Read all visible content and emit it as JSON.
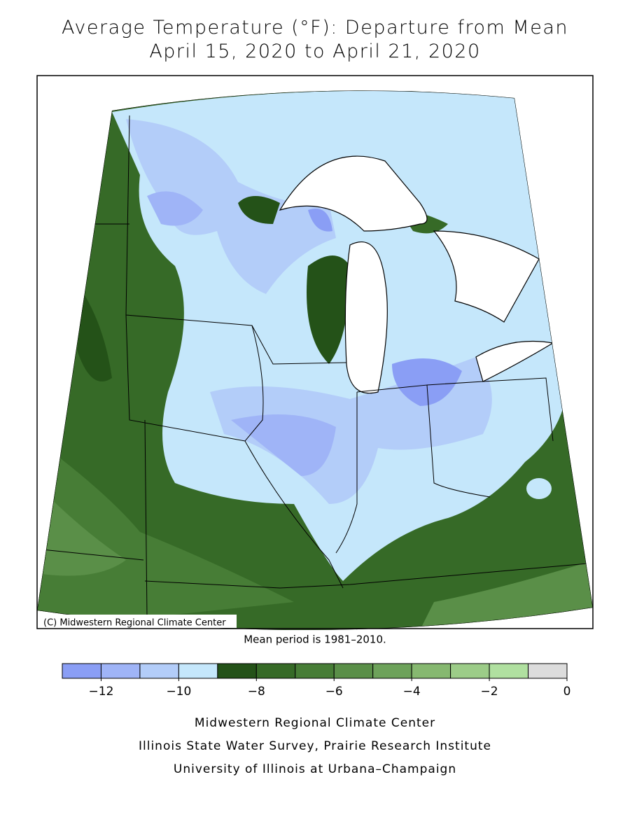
{
  "header": {
    "title": "Average Temperature (°F): Departure from Mean",
    "subtitle": "April 15, 2020 to April 21, 2020"
  },
  "map": {
    "credit": "(C) Midwestern Regional Climate Center",
    "note": "Mean period is 1981–2010."
  },
  "legend": {
    "lim": [
      -13,
      0
    ],
    "bins": [
      -13,
      -12,
      -11,
      -10,
      -9,
      -8,
      -7,
      -6,
      -5,
      -4,
      -3,
      -2,
      -1,
      0
    ],
    "colors": [
      "#8a9ef5",
      "#9fb4f7",
      "#b3cdf9",
      "#c5e7fb",
      "#245218",
      "#366a27",
      "#477d36",
      "#5a8f48",
      "#6da25a",
      "#86b870",
      "#9ccc88",
      "#b0e0a0",
      "#dcdcdc"
    ],
    "ticks": [
      {
        "value": -12,
        "label": "−12"
      },
      {
        "value": -10,
        "label": "−10"
      },
      {
        "value": -8,
        "label": "−8"
      },
      {
        "value": -6,
        "label": "−6"
      },
      {
        "value": -4,
        "label": "−4"
      },
      {
        "value": -2,
        "label": "−2"
      },
      0
    ]
  },
  "footer": {
    "lines": [
      "Midwestern Regional Climate Center",
      "Illinois State Water Survey, Prairie Research Institute",
      "University of Illinois at Urbana–Champaign"
    ]
  }
}
